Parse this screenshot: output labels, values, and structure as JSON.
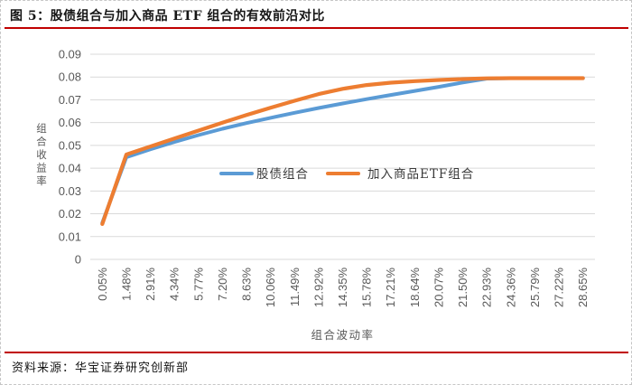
{
  "figure": {
    "title": "图 5：股债组合与加入商品 ETF 组合的有效前沿对比",
    "source": "资料来源：华宝证券研究创新部"
  },
  "colors": {
    "accent_rule": "#c00000",
    "series_blue": "#5b9bd5",
    "series_orange": "#ed7d31",
    "grid": "#d9d9d9",
    "axis_text": "#595959",
    "legend_text": "#3a3a3a",
    "frame_dash": "#c6c6c6"
  },
  "chart_data": {
    "type": "line",
    "title": "",
    "xlabel": "组合波动率",
    "ylabel": "组合收益率",
    "ylim": [
      0,
      0.09
    ],
    "ytick_labels": [
      "0",
      "0.01",
      "0.02",
      "0.03",
      "0.04",
      "0.05",
      "0.06",
      "0.07",
      "0.08",
      "0.09"
    ],
    "grid": true,
    "legend_position": "inside-center",
    "categories": [
      "0.05%",
      "1.48%",
      "2.91%",
      "4.34%",
      "5.77%",
      "7.20%",
      "8.63%",
      "10.06%",
      "11.49%",
      "12.92%",
      "14.35%",
      "15.78%",
      "17.21%",
      "18.64%",
      "20.07%",
      "21.50%",
      "22.93%",
      "24.36%",
      "25.79%",
      "27.22%",
      "28.65%"
    ],
    "series": [
      {
        "name": "股债组合",
        "color_key": "series_blue",
        "values": [
          0.016,
          0.0448,
          0.0483,
          0.0515,
          0.0545,
          0.0573,
          0.0598,
          0.0621,
          0.0643,
          0.0664,
          0.0684,
          0.0703,
          0.0721,
          0.0739,
          0.0757,
          0.0776,
          0.0793,
          0.0795,
          0.0795,
          0.0795,
          0.0795
        ]
      },
      {
        "name": "加入商品ETF组合",
        "color_key": "series_orange",
        "values": [
          0.0155,
          0.046,
          0.0495,
          0.053,
          0.0565,
          0.06,
          0.0633,
          0.0665,
          0.0696,
          0.0725,
          0.0748,
          0.0765,
          0.0775,
          0.0782,
          0.0787,
          0.0791,
          0.0794,
          0.0795,
          0.0795,
          0.0795,
          0.0795
        ]
      }
    ]
  }
}
